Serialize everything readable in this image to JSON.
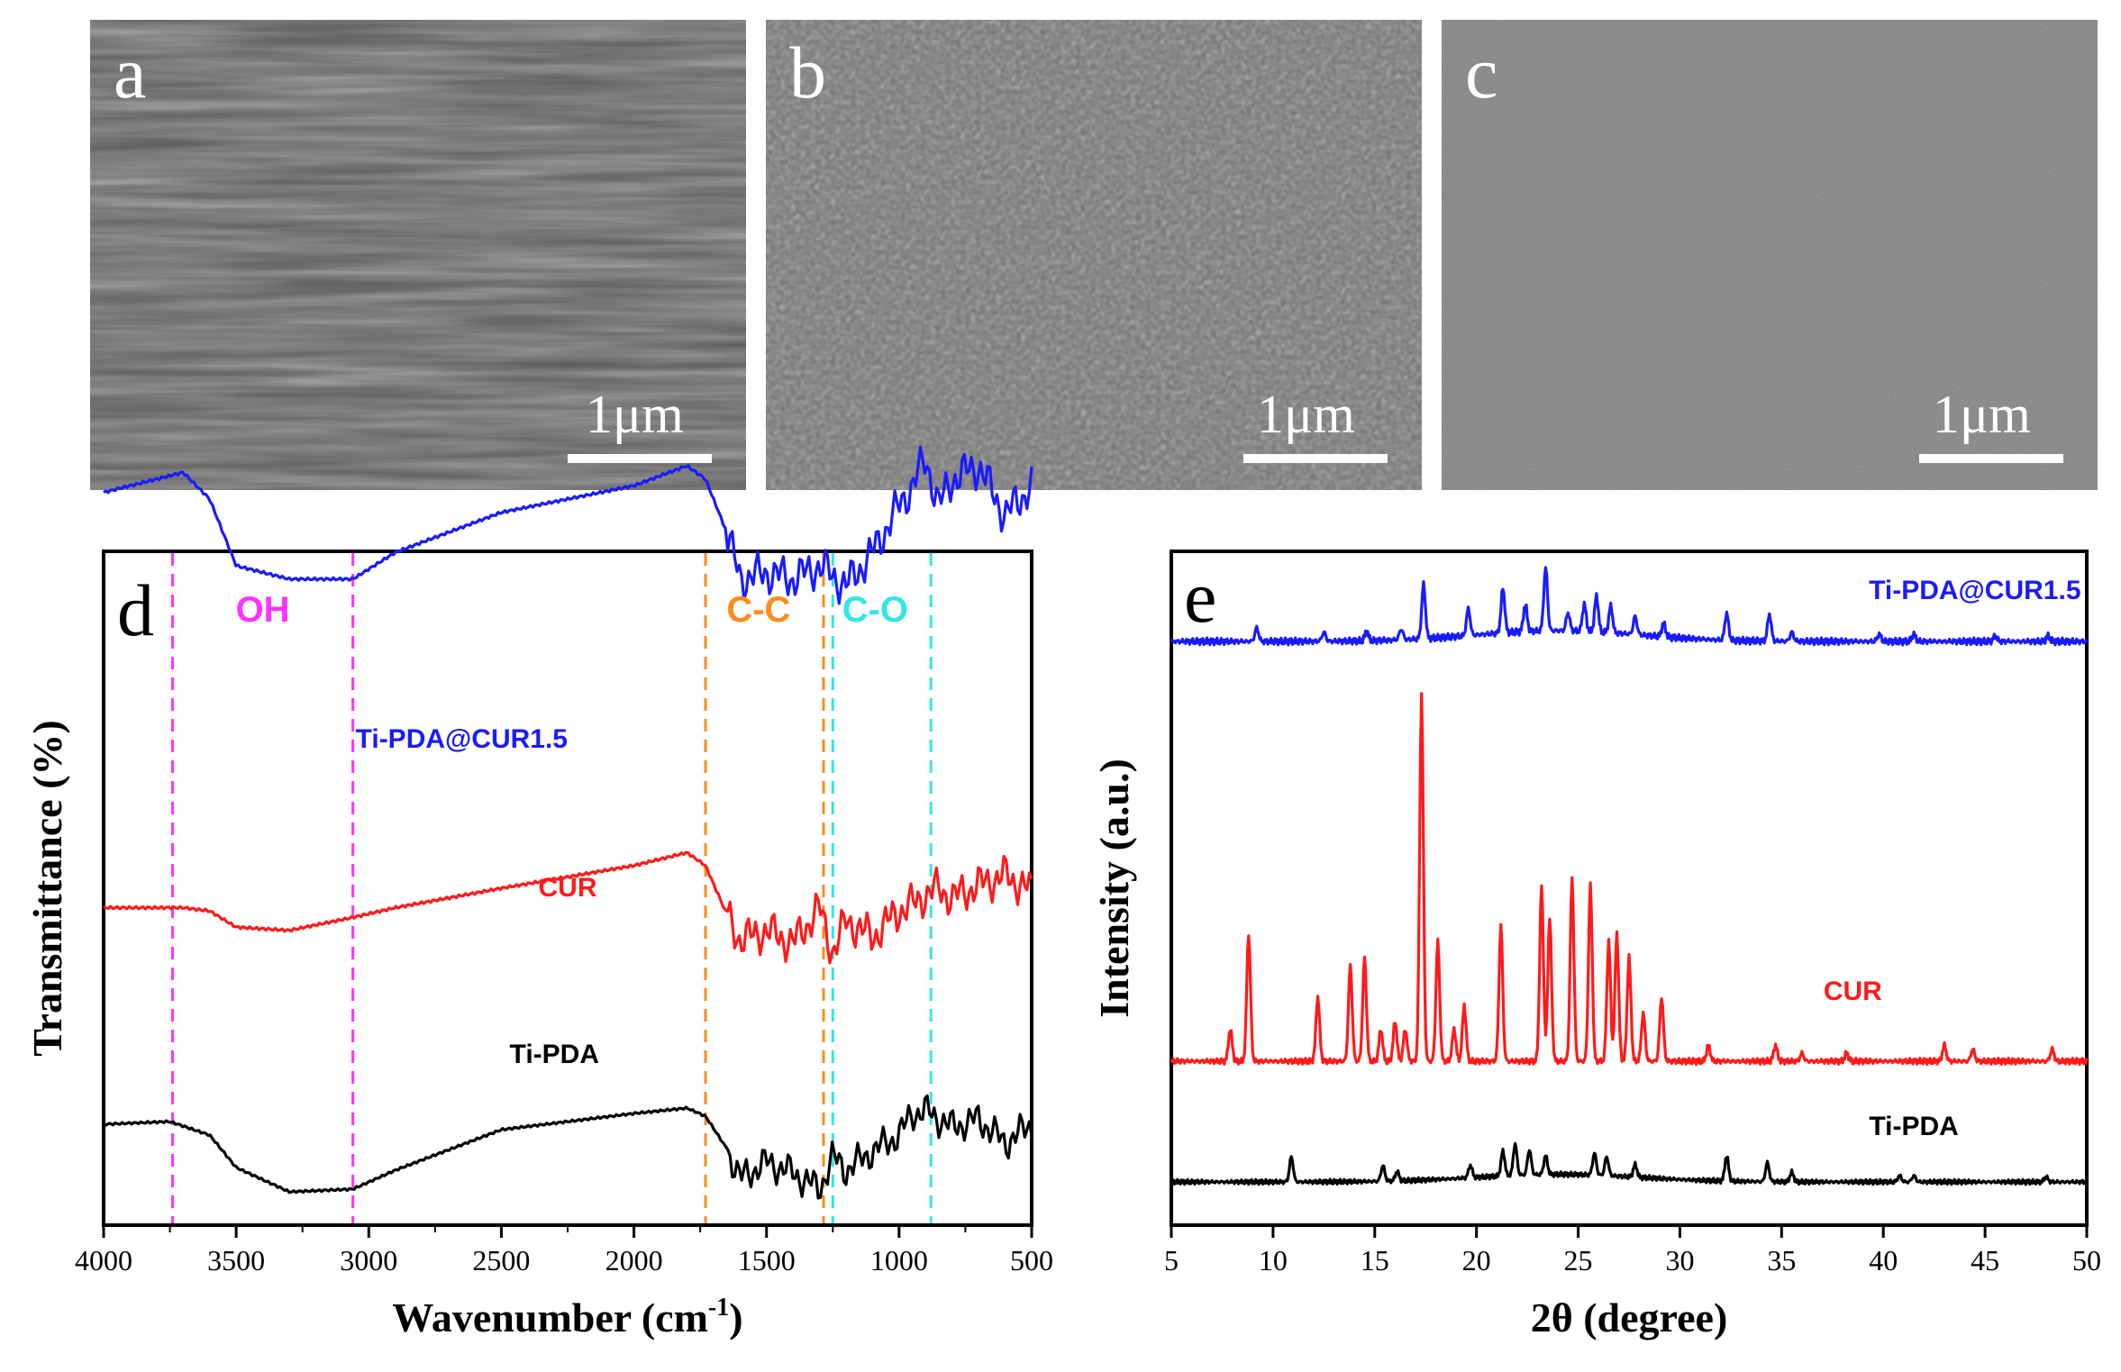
{
  "sem_panels": [
    {
      "letter": "a",
      "scale_bar": "1μm",
      "tone": "#5a5a5a"
    },
    {
      "letter": "b",
      "scale_bar": "1μm",
      "tone": "#747474"
    },
    {
      "letter": "c",
      "scale_bar": "1μm",
      "tone": "#7e7e7e"
    }
  ],
  "chart_data": [
    {
      "type": "line",
      "panel_letter": "d",
      "xlabel": "Wavenumber (cm",
      "xlabel_sup": "-1",
      "xlabel_end": ")",
      "ylabel": "Transmittance (%)",
      "xlim": [
        4000,
        500
      ],
      "xticks": [
        4000,
        3500,
        3000,
        2500,
        2000,
        1500,
        1000,
        500
      ],
      "reference_lines": [
        {
          "x": 3740,
          "color": "#ff33ff"
        },
        {
          "x": 3060,
          "color": "#ff33ff"
        },
        {
          "x": 1730,
          "color": "#ff8c1a"
        },
        {
          "x": 1285,
          "color": "#ff8c1a"
        },
        {
          "x": 1250,
          "color": "#33e6e6"
        },
        {
          "x": 880,
          "color": "#33e6e6"
        }
      ],
      "band_labels": [
        {
          "text": "OH",
          "x": 3400,
          "color": "#ff33ff"
        },
        {
          "text": "C-C",
          "x": 1530,
          "color": "#ff8c1a"
        },
        {
          "text": "C-O",
          "x": 1090,
          "color": "#33e6e6"
        }
      ],
      "series": [
        {
          "name": "Ti-PDA@CUR1.5",
          "color": "#1a1aff",
          "label_x": 2650,
          "x": [
            4000,
            3700,
            3600,
            3500,
            3300,
            3060,
            2900,
            2500,
            2000,
            1800,
            1730,
            1650,
            1600,
            1500,
            1400,
            1300,
            1200,
            1100,
            1000,
            950,
            900,
            850,
            800,
            700,
            600,
            500
          ],
          "y": [
            82,
            88,
            80,
            60,
            56,
            56,
            64,
            76,
            84,
            90,
            86,
            70,
            56,
            58,
            56,
            60,
            54,
            64,
            78,
            84,
            92,
            78,
            86,
            90,
            75,
            84
          ]
        },
        {
          "name": "CUR",
          "color": "#ff1a1a",
          "label_x": 2250,
          "x": [
            4000,
            3700,
            3600,
            3500,
            3300,
            3060,
            2900,
            2500,
            2000,
            1800,
            1730,
            1650,
            1600,
            1500,
            1400,
            1300,
            1250,
            1200,
            1100,
            1000,
            950,
            900,
            850,
            800,
            700,
            600,
            500
          ],
          "y": [
            34,
            34,
            33,
            28,
            27,
            31,
            34,
            40,
            47,
            51,
            47,
            32,
            24,
            27,
            23,
            34,
            20,
            30,
            25,
            33,
            35,
            38,
            40,
            37,
            41,
            44,
            39
          ]
        },
        {
          "name": "Ti-PDA",
          "color": "#000000",
          "label_x": 2300,
          "x": [
            4000,
            3750,
            3600,
            3500,
            3300,
            3060,
            2900,
            2500,
            2000,
            1800,
            1730,
            1650,
            1600,
            1500,
            1400,
            1300,
            1250,
            1200,
            1100,
            1000,
            950,
            900,
            850,
            800,
            700,
            600,
            500
          ],
          "y": [
            4,
            5,
            0,
            -12,
            -21,
            -20,
            -13,
            2,
            8,
            10,
            7,
            -5,
            -16,
            -10,
            -14,
            -20,
            -8,
            -13,
            -6,
            0,
            8,
            9,
            6,
            3,
            6,
            -3,
            4
          ]
        }
      ]
    },
    {
      "type": "line",
      "panel_letter": "e",
      "xlabel": "2θ (degree)",
      "ylabel": "Intensity (a.u.)",
      "xlim": [
        5,
        50
      ],
      "xticks": [
        5,
        10,
        15,
        20,
        25,
        30,
        35,
        40,
        45,
        50
      ],
      "series": [
        {
          "name": "Ti-PDA@CUR1.5",
          "color": "#1a1aff",
          "label_x": 44.5,
          "baseline": 0,
          "peaks": [
            [
              9.2,
              1.5
            ],
            [
              12.5,
              1
            ],
            [
              14.6,
              1
            ],
            [
              16.3,
              1.2
            ],
            [
              17.4,
              6
            ],
            [
              19.6,
              3
            ],
            [
              21.3,
              5
            ],
            [
              22.4,
              3
            ],
            [
              23.4,
              7
            ],
            [
              24.5,
              2
            ],
            [
              25.3,
              3
            ],
            [
              25.9,
              4
            ],
            [
              26.6,
              3
            ],
            [
              27.8,
              2
            ],
            [
              29.2,
              1.5
            ],
            [
              32.3,
              3
            ],
            [
              34.4,
              3
            ],
            [
              35.5,
              1
            ],
            [
              39.8,
              0.8
            ],
            [
              41.5,
              0.8
            ],
            [
              45.5,
              0.6
            ],
            [
              48.1,
              0.6
            ]
          ]
        },
        {
          "name": "CUR",
          "color": "#ff1a1a",
          "label_x": 38.5,
          "baseline": 0,
          "peaks": [
            [
              7.9,
              4
            ],
            [
              8.8,
              16
            ],
            [
              12.2,
              8
            ],
            [
              13.8,
              12
            ],
            [
              14.5,
              13
            ],
            [
              15.3,
              4
            ],
            [
              16.0,
              5
            ],
            [
              16.5,
              4
            ],
            [
              17.3,
              46
            ],
            [
              18.1,
              15
            ],
            [
              18.9,
              4
            ],
            [
              19.4,
              7
            ],
            [
              21.2,
              17
            ],
            [
              23.2,
              22
            ],
            [
              23.6,
              18
            ],
            [
              24.7,
              23
            ],
            [
              25.6,
              22
            ],
            [
              26.5,
              15
            ],
            [
              26.9,
              16
            ],
            [
              27.5,
              13
            ],
            [
              28.2,
              6
            ],
            [
              29.1,
              8
            ],
            [
              31.4,
              2
            ],
            [
              34.7,
              2
            ],
            [
              36.0,
              1
            ],
            [
              38.2,
              1
            ],
            [
              43.0,
              2
            ],
            [
              44.4,
              1.5
            ],
            [
              48.3,
              1.5
            ]
          ]
        },
        {
          "name": "Ti-PDA",
          "color": "#000000",
          "label_x": 41.5,
          "baseline": 0,
          "peaks": [
            [
              10.9,
              4
            ],
            [
              15.4,
              2.5
            ],
            [
              16.1,
              1.5
            ],
            [
              19.7,
              2
            ],
            [
              21.3,
              4
            ],
            [
              21.9,
              5
            ],
            [
              22.6,
              4
            ],
            [
              23.4,
              3
            ],
            [
              25.8,
              3.5
            ],
            [
              26.4,
              3
            ],
            [
              27.8,
              2
            ],
            [
              32.3,
              4
            ],
            [
              34.3,
              3
            ],
            [
              35.5,
              1.5
            ],
            [
              40.8,
              1
            ],
            [
              41.5,
              1
            ],
            [
              48.0,
              0.8
            ]
          ]
        }
      ]
    }
  ]
}
